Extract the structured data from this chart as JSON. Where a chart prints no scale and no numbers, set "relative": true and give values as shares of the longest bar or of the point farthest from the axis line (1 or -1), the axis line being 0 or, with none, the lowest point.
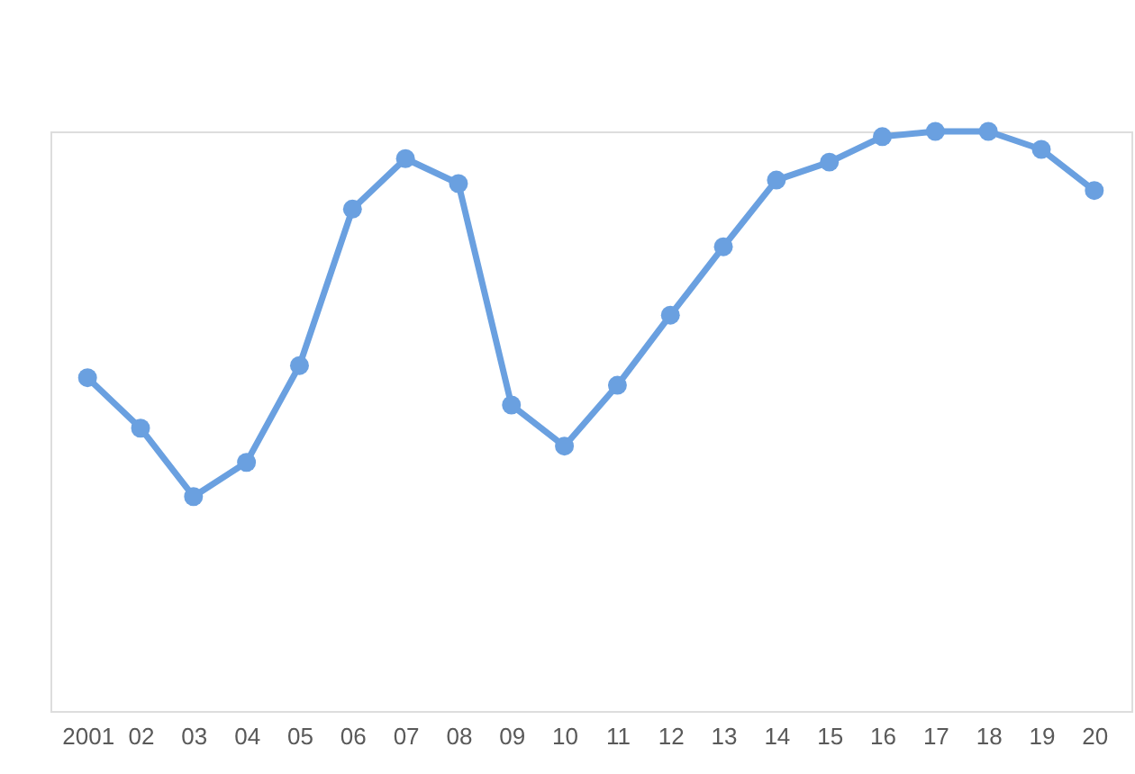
{
  "chart_data": {
    "type": "line",
    "relative": true,
    "categories": [
      "2001",
      "02",
      "03",
      "04",
      "05",
      "06",
      "07",
      "08",
      "09",
      "10",
      "11",
      "12",
      "13",
      "14",
      "15",
      "16",
      "17",
      "18",
      "19",
      "20"
    ],
    "series": [
      {
        "color": "#6aa0e0",
        "values": [
          0.575,
          0.488,
          0.37,
          0.429,
          0.596,
          0.866,
          0.953,
          0.91,
          0.528,
          0.457,
          0.562,
          0.683,
          0.801,
          0.916,
          0.947,
          0.991,
          1.0,
          1.0,
          0.969,
          0.898
        ]
      }
    ],
    "marker": "circle",
    "line_style": "solid"
  }
}
